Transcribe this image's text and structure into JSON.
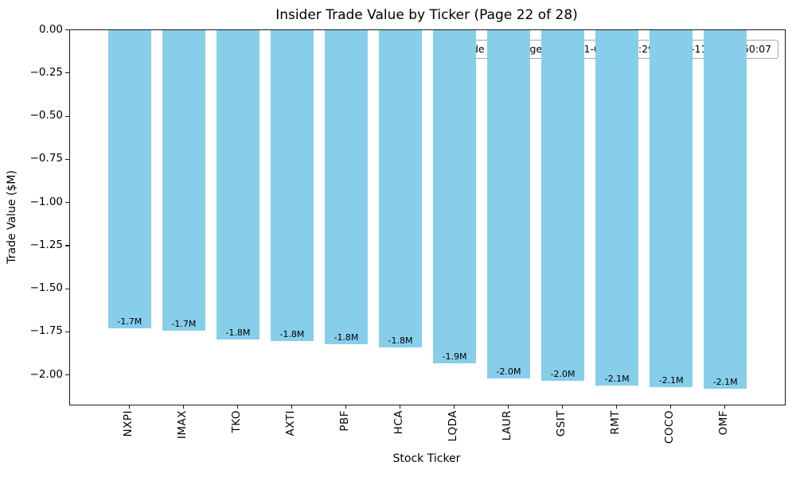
{
  "chart_data": {
    "type": "bar",
    "title": "Insider Trade Value by Ticker (Page 22 of 28)",
    "xlabel": "Stock Ticker",
    "ylabel": "Trade Value ($M)",
    "categories": [
      "NXPI",
      "IMAX",
      "TKO",
      "AXTI",
      "PBF",
      "HCA",
      "LQDA",
      "LAUR",
      "GSIT",
      "RMT",
      "COCO",
      "OMF"
    ],
    "values": [
      -1.73,
      -1.74,
      -1.79,
      -1.8,
      -1.82,
      -1.84,
      -1.93,
      -2.02,
      -2.03,
      -2.06,
      -2.07,
      -2.08
    ],
    "bar_labels": [
      "-1.7M",
      "-1.7M",
      "-1.8M",
      "-1.8M",
      "-1.8M",
      "-1.8M",
      "-1.9M",
      "-2.0M",
      "-2.0M",
      "-2.1M",
      "-2.1M",
      "-2.1M"
    ],
    "yticks": [
      0,
      -0.25,
      -0.5,
      -0.75,
      -1.0,
      -1.25,
      -1.5,
      -1.75,
      -2.0
    ],
    "ytick_labels": [
      "0.00",
      "−0.25",
      "−0.50",
      "−0.75",
      "−1.00",
      "−1.25",
      "−1.50",
      "−1.75",
      "−2.00"
    ],
    "ylim": [
      -2.17,
      0
    ],
    "bar_color": "#87CEEB",
    "grid": false,
    "legend": null,
    "annotation": "Trade date range: 2025-11-05 16:43:29 – 2025-11-07 21:50:07"
  }
}
